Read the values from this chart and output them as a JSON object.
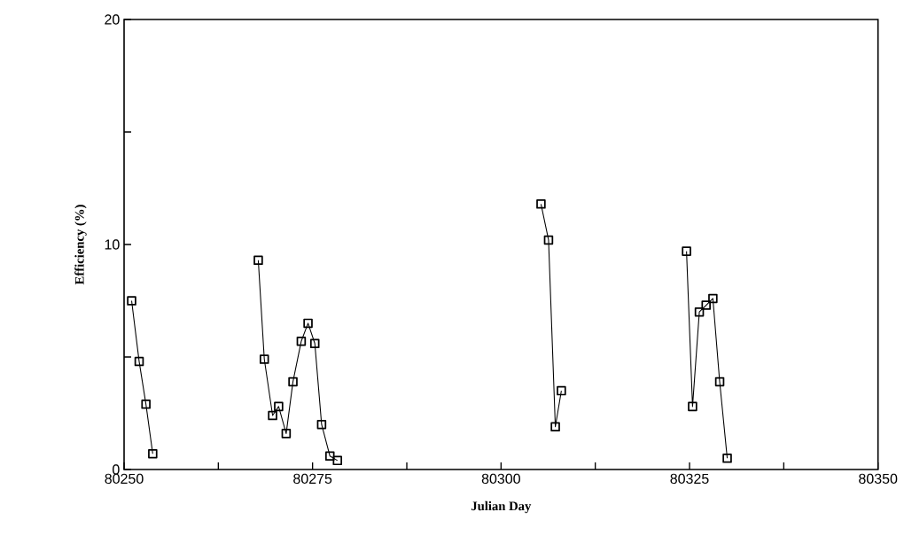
{
  "chart_data": {
    "type": "line",
    "xlabel": "Julian Day",
    "ylabel": "Efficiency (%)",
    "marker": "square",
    "line_style": "solid",
    "grid": false,
    "xlim": [
      80250,
      80350
    ],
    "xticks": [
      80250,
      {
        "value": 80262.5,
        "label": null
      },
      80275,
      {
        "value": 80287.5,
        "label": null
      },
      80300,
      {
        "value": 80312.5,
        "label": null
      },
      80325,
      {
        "value": 80337.5,
        "label": null
      },
      80350
    ],
    "ylim": [
      0,
      20
    ],
    "yticks": [
      0,
      {
        "value": 5,
        "label": null
      },
      10,
      {
        "value": 15,
        "label": null
      },
      20
    ],
    "series": [
      {
        "color": "#000000",
        "x": [
          80251.0,
          80252.0,
          80252.9,
          80253.8
        ],
        "values": [
          7.5,
          4.8,
          2.9,
          0.7
        ]
      },
      {
        "color": "#000000",
        "x": [
          80267.8,
          80268.6,
          80269.7,
          80270.5,
          80271.5,
          80272.4,
          80273.5,
          80274.4,
          80275.3,
          80276.2,
          80277.3,
          80278.3
        ],
        "values": [
          9.3,
          4.9,
          2.4,
          2.8,
          1.6,
          3.9,
          5.7,
          6.5,
          5.6,
          2.0,
          0.6,
          0.4
        ]
      },
      {
        "color": "#000000",
        "x": [
          80305.3,
          80306.3,
          80307.2,
          80308.0
        ],
        "values": [
          11.8,
          10.2,
          1.9,
          3.5
        ]
      },
      {
        "color": "#000000",
        "x": [
          80324.6,
          80325.4,
          80326.3,
          80327.2,
          80328.1,
          80329.0,
          80330.0
        ],
        "values": [
          9.7,
          2.8,
          7.0,
          7.3,
          7.6,
          3.9,
          0.5
        ]
      }
    ]
  }
}
